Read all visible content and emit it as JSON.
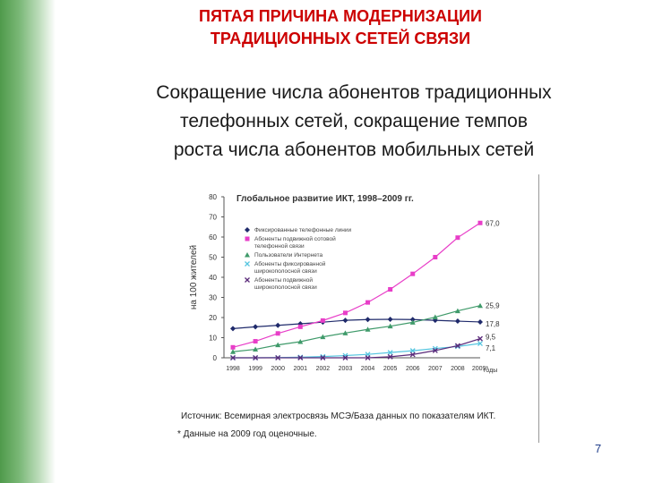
{
  "slide": {
    "title_line1": "ПЯТАЯ ПРИЧИНА МОДЕРНИЗАЦИИ",
    "title_line2": "ТРАДИЦИОННЫХ СЕТЕЙ СВЯЗИ",
    "subtitle_line1": "Сокращение числа абонентов традиционных",
    "subtitle_line2": "телефонных сетей, сокращение темпов",
    "subtitle_line3": "роста числа  абонентов мобильных сетей",
    "page_number": "7"
  },
  "chart_data": {
    "type": "line",
    "title": "Глобальное развитие ИКТ, 1998–2009 гг.",
    "ylabel": "на 100 жителей",
    "xlabel_suffix": "годы",
    "ylim": [
      0,
      80
    ],
    "yticks": [
      "0",
      "10",
      "20",
      "30",
      "40",
      "50",
      "60",
      "70",
      "80"
    ],
    "categories": [
      "1998",
      "1999",
      "2000",
      "2001",
      "2002",
      "2003",
      "2004",
      "2005",
      "2006",
      "2007",
      "2008",
      "2009*"
    ],
    "series": [
      {
        "name": "Фиксированные телефонные линии",
        "color": "#1f2a6b",
        "marker": "diamond",
        "values": [
          14.5,
          15.4,
          16.1,
          16.9,
          17.7,
          18.6,
          19.0,
          19.1,
          19.0,
          18.6,
          18.2,
          17.8
        ],
        "end_label": "17,8"
      },
      {
        "name": "Абоненты подвижной сотовой телефонной связи",
        "color": "#e83ec8",
        "marker": "square",
        "values": [
          5.2,
          8.2,
          12.1,
          15.4,
          18.5,
          22.3,
          27.5,
          34.0,
          41.7,
          50.0,
          59.7,
          67.0
        ],
        "end_label": "67,0"
      },
      {
        "name": "Пользователи Интернета",
        "color": "#3f9a6a",
        "marker": "triangle",
        "values": [
          3.0,
          4.2,
          6.4,
          8.0,
          10.4,
          12.3,
          14.1,
          15.7,
          17.6,
          20.2,
          23.3,
          25.9
        ],
        "end_label": "25,9"
      },
      {
        "name": "Абоненты фиксированной широкополосной связи",
        "color": "#56c6e0",
        "marker": "x",
        "values": [
          0.0,
          0.0,
          0.1,
          0.3,
          0.6,
          1.1,
          1.7,
          2.6,
          3.5,
          4.6,
          5.6,
          7.1
        ],
        "end_label": "7,1"
      },
      {
        "name": "Абоненты подвижной широкополосной связи",
        "color": "#5a2a7a",
        "marker": "x",
        "values": [
          0.0,
          0.0,
          0.0,
          0.0,
          0.0,
          0.0,
          0.0,
          0.5,
          1.6,
          3.6,
          6.0,
          9.5
        ],
        "end_label": "9,5"
      }
    ],
    "legend_position": "top-left",
    "source_line1": "Источник: Всемирная электросвязь МСЭ/База данных по показателям ИКТ.",
    "source_line2": "* Данные на 2009 год оценочные."
  }
}
